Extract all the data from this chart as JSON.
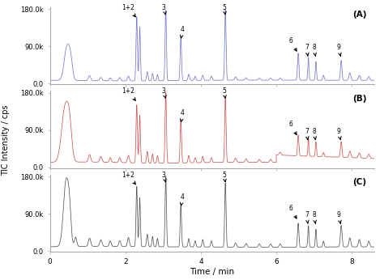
{
  "colors": [
    "#7777cc",
    "#cc5555",
    "#555555"
  ],
  "panels": [
    "(A)",
    "(B)",
    "(C)"
  ],
  "xlim": [
    0,
    8.6
  ],
  "ylim": [
    -2000,
    185000
  ],
  "yticks": [
    0,
    90000,
    180000
  ],
  "yticklabels": [
    "0.0",
    "90.0k",
    "180.0k"
  ],
  "xticks": [
    0,
    2,
    4,
    6,
    8
  ],
  "xlabel": "Time / min",
  "ylabel": "TIC Intensity / cps",
  "baseline_A": 8000,
  "baseline_B": 12000,
  "baseline_C": 10000,
  "annots": [
    {
      "label": "1+2",
      "xt": 2.08,
      "yt": 175000,
      "xa": 2.32,
      "ya": 155000
    },
    {
      "label": "3",
      "xt": 3.02,
      "yt": 175000,
      "xa": 3.07,
      "ya": 165000
    },
    {
      "label": "4",
      "xt": 3.52,
      "yt": 122000,
      "xa": 3.47,
      "ya": 108000
    },
    {
      "label": "5",
      "xt": 4.62,
      "yt": 175000,
      "xa": 4.65,
      "ya": 165000
    },
    {
      "label": "6",
      "xt": 6.38,
      "yt": 95000,
      "xa": 6.58,
      "ya": 72000
    },
    {
      "label": "7",
      "xt": 6.8,
      "yt": 78000,
      "xa": 6.85,
      "ya": 60000
    },
    {
      "label": "8",
      "xt": 7.0,
      "yt": 78000,
      "xa": 7.05,
      "ya": 60000
    },
    {
      "label": "9",
      "xt": 7.65,
      "yt": 78000,
      "xa": 7.72,
      "ya": 60000
    }
  ]
}
